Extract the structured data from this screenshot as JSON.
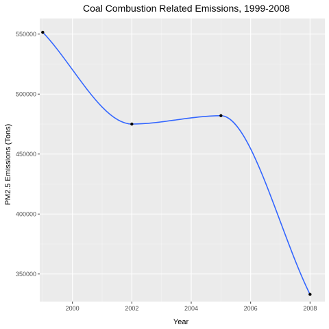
{
  "chart_data": {
    "type": "line",
    "title": "Coal Combustion Related Emissions, 1999-2008",
    "xlabel": "Year",
    "ylabel": "PM2.5 Emissions (Tons)",
    "x": [
      1999,
      2002,
      2005,
      2008
    ],
    "y": [
      551500,
      475000,
      482000,
      333000
    ],
    "xlim": [
      1998.9,
      2008.5
    ],
    "ylim": [
      327000,
      563000
    ],
    "x_ticks": [
      2000,
      2002,
      2004,
      2006,
      2008
    ],
    "x_tick_labels": [
      "2000",
      "2002",
      "2004",
      "2006",
      "2008"
    ],
    "y_ticks": [
      350000,
      400000,
      450000,
      500000,
      550000
    ],
    "y_tick_labels": [
      "350000",
      "400000",
      "450000",
      "500000",
      "550000"
    ],
    "grid": true,
    "background_color": "#ebebeb",
    "grid_major_color": "#ffffff",
    "line_color": "#3366ff",
    "point_color": "#000000"
  }
}
